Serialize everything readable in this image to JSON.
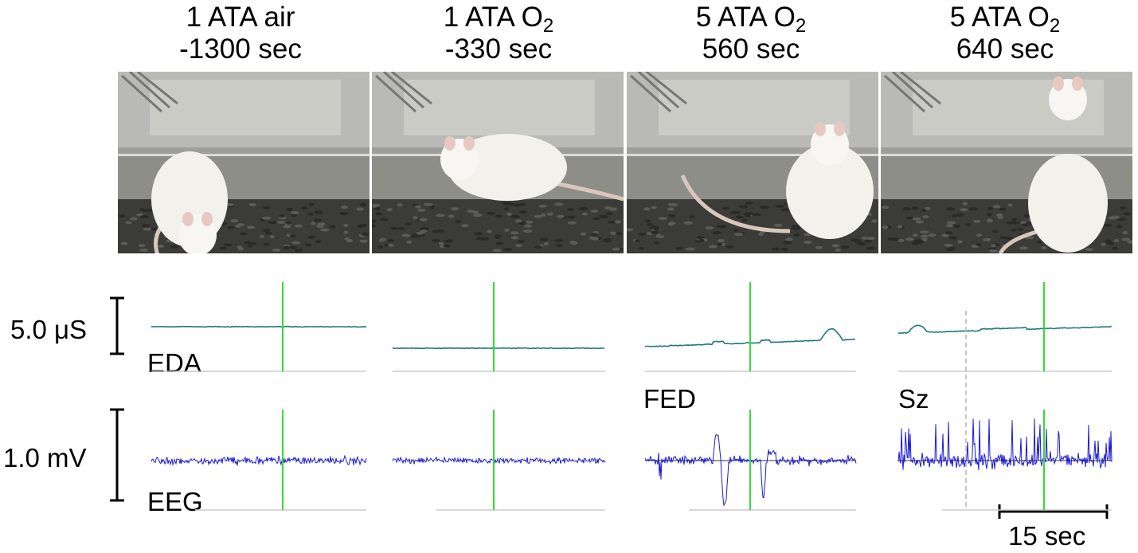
{
  "panels": [
    {
      "title": "1 ATA air",
      "time": "-1300 sec",
      "o2": false
    },
    {
      "title": "1 ATA O",
      "time": "-330 sec",
      "o2": true
    },
    {
      "title": "5 ATA O",
      "time": "560 sec",
      "o2": true
    },
    {
      "title": "5 ATA O",
      "time": "640 sec",
      "o2": true
    }
  ],
  "o2_subscript": "2",
  "scale_bars": {
    "eda": "5.0 μS",
    "eeg": "1.0 mV",
    "time": "15 sec"
  },
  "row_labels": {
    "eda": "EDA",
    "eeg": "EEG"
  },
  "event_labels": {
    "fed": "FED",
    "sz": "Sz"
  },
  "colors": {
    "eda_trace": "#1f7a78",
    "eeg_trace": "#1a1ad8",
    "cursor": "#33dd33",
    "baseline": "#cccccc"
  },
  "photos": [
    {
      "subject": "white rat in chamber",
      "icon": "rat-photo"
    },
    {
      "subject": "white rat in chamber",
      "icon": "rat-photo"
    },
    {
      "subject": "white rat in chamber",
      "icon": "rat-photo"
    },
    {
      "subject": "white rat in chamber",
      "icon": "rat-photo"
    }
  ]
}
